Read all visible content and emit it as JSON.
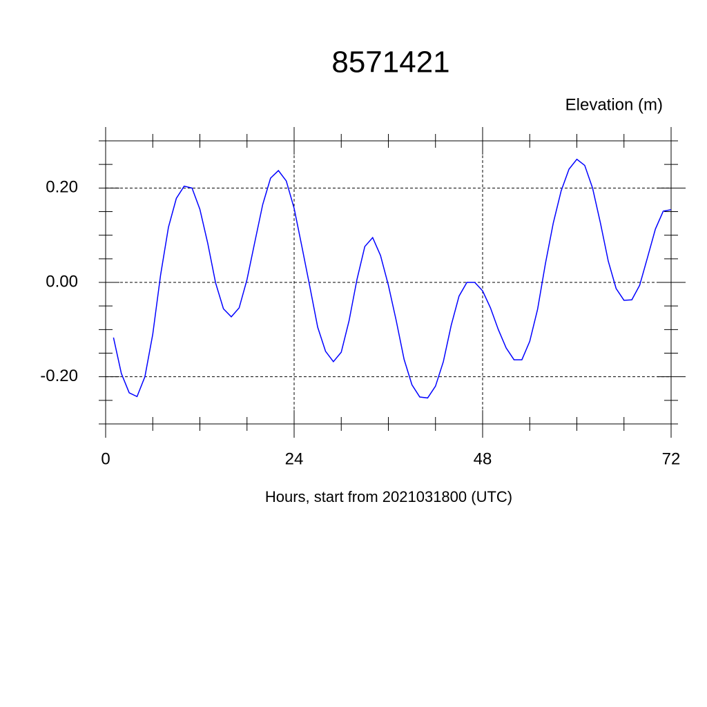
{
  "chart_data": {
    "type": "line",
    "title": "8571421",
    "subtitle": "Elevation (m)",
    "x_label": "Hours, start from 2021031800 (UTC)",
    "x": [
      1,
      2,
      3,
      4,
      5,
      6,
      7,
      8,
      9,
      10,
      11,
      12,
      13,
      14,
      15,
      16,
      17,
      18,
      19,
      20,
      21,
      22,
      23,
      24,
      25,
      26,
      27,
      28,
      29,
      30,
      31,
      32,
      33,
      34,
      35,
      36,
      37,
      38,
      39,
      40,
      41,
      42,
      43,
      44,
      45,
      46,
      47,
      48,
      49,
      50,
      51,
      52,
      53,
      54,
      55,
      56,
      57,
      58,
      59,
      60,
      61,
      62,
      63,
      64,
      65,
      66,
      67,
      68,
      69,
      70,
      71,
      72
    ],
    "series": [
      {
        "color": "#0000ff",
        "values": [
          -0.117,
          -0.193,
          -0.234,
          -0.242,
          -0.2,
          -0.11,
          0.016,
          0.117,
          0.178,
          0.204,
          0.2,
          0.155,
          0.083,
          -0.001,
          -0.056,
          -0.073,
          -0.054,
          0.006,
          0.086,
          0.165,
          0.221,
          0.237,
          0.215,
          0.157,
          0.075,
          -0.009,
          -0.095,
          -0.146,
          -0.168,
          -0.148,
          -0.081,
          0.006,
          0.076,
          0.095,
          0.057,
          -0.006,
          -0.081,
          -0.163,
          -0.217,
          -0.243,
          -0.245,
          -0.22,
          -0.168,
          -0.091,
          -0.029,
          0,
          0,
          -0.018,
          -0.054,
          -0.1,
          -0.139,
          -0.164,
          -0.164,
          -0.125,
          -0.057,
          0.04,
          0.126,
          0.194,
          0.24,
          0.261,
          0.248,
          0.2,
          0.126,
          0.045,
          -0.013,
          -0.038,
          -0.037,
          -0.006,
          0.053,
          0.113,
          0.151,
          0.154
        ]
      }
    ],
    "xlim": [
      0,
      72
    ],
    "xticks": [
      0,
      24,
      48,
      72
    ],
    "xminorticks": [
      6,
      12,
      18,
      30,
      36,
      42,
      54,
      60,
      66
    ],
    "ylim": [
      -0.3,
      0.3
    ],
    "yticks": [
      {
        "value": -0.2,
        "label": "-0.20"
      },
      {
        "value": 0,
        "label": "0.00"
      },
      {
        "value": 0.2,
        "label": "0.20"
      }
    ],
    "yminorticks": [
      -0.3,
      -0.25,
      -0.15,
      -0.1,
      -0.05,
      0.05,
      0.1,
      0.15,
      0.25,
      0.3
    ],
    "grid": true
  }
}
